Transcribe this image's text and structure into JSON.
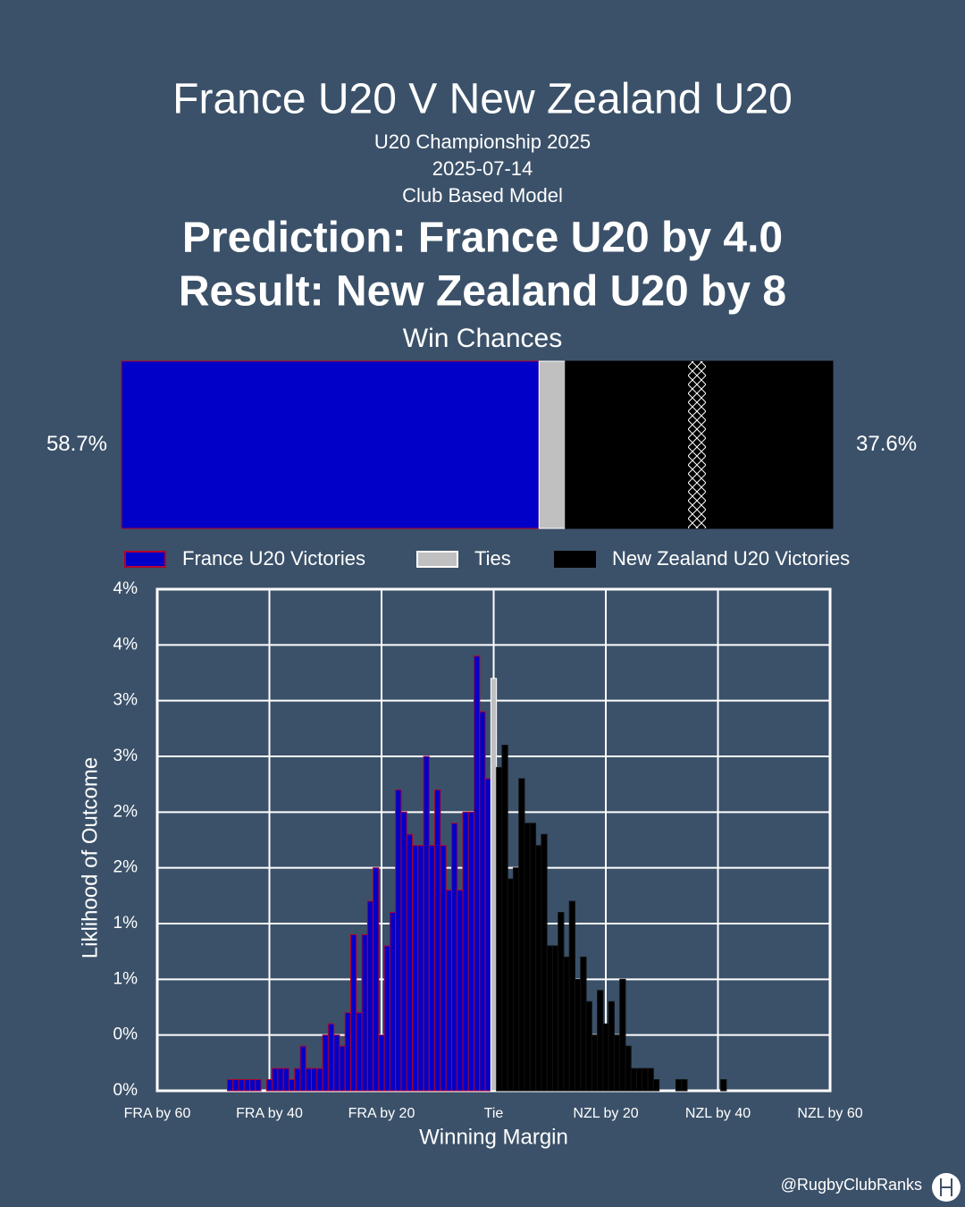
{
  "header": {
    "title": "France U20 V New Zealand U20",
    "competition": "U20 Championship 2025",
    "date": "2025-07-14",
    "model": "Club Based Model",
    "prediction": "Prediction: France U20 by 4.0",
    "result": "Result: New Zealand U20 by 8",
    "credit": "@RugbyClubRanks"
  },
  "chart_data": [
    {
      "type": "hbar_stack",
      "title": "Win Chances",
      "series": [
        {
          "name": "France U20 Victories",
          "color": "#0000c8",
          "edgecolor": "#b00030",
          "values": [
            58.7
          ],
          "value_labels": [
            "58.7%"
          ]
        },
        {
          "name": "Ties",
          "color": "#c0c0c0",
          "edgecolor": "#ffffff",
          "values": [
            3.7
          ]
        },
        {
          "name": "New Zealand U20 Victories",
          "color": "#000000",
          "edgecolor": "#000000",
          "values": [
            37.6
          ],
          "value_labels": [
            "37.6%"
          ]
        }
      ]
    },
    {
      "type": "histogram",
      "xlabel": "Winning Margin",
      "ylabel": "Liklihood of Outcome",
      "xlim": [
        -60,
        60
      ],
      "xticks": [
        {
          "value": -60,
          "label": "FRA by 60"
        },
        {
          "value": -40,
          "label": "FRA by 40"
        },
        {
          "value": -20,
          "label": "FRA by 20"
        },
        {
          "value": 0,
          "label": "Tie"
        },
        {
          "value": 20,
          "label": "NZL by 20"
        },
        {
          "value": 40,
          "label": "NZL by 40"
        },
        {
          "value": 60,
          "label": "NZL by 60"
        }
      ],
      "ylim": [
        0,
        4.5
      ],
      "yticks": [
        {
          "value": 0,
          "label": "0%"
        },
        {
          "value": 0.5,
          "label": "0%"
        },
        {
          "value": 1,
          "label": "1%"
        },
        {
          "value": 1.5,
          "label": "1%"
        },
        {
          "value": 2,
          "label": "2%"
        },
        {
          "value": 2.5,
          "label": "2%"
        },
        {
          "value": 3,
          "label": "3%"
        },
        {
          "value": 3.5,
          "label": "3%"
        },
        {
          "value": 4,
          "label": "4%"
        },
        {
          "value": 4.5,
          "label": "4%"
        }
      ],
      "grid": true,
      "series": [
        {
          "color": "#0000c8",
          "edgecolor": "#b00030",
          "bins": [
            -47.5,
            -46.5,
            -45.5,
            -44.5,
            -43.5,
            -42.5,
            -41.5,
            -40.5,
            -39.5,
            -38.5,
            -37.5,
            -36.5,
            -35.5,
            -34.5,
            -33.5,
            -32.5,
            -31.5,
            -30.5,
            -29.5,
            -28.5,
            -27.5,
            -26.5,
            -25.5,
            -24.5,
            -23.5,
            -22.5,
            -21.5,
            -20.5,
            -19.5,
            -18.5,
            -17.5,
            -16.5,
            -15.5,
            -14.5,
            -13.5,
            -12.5,
            -11.5,
            -10.5,
            -9.5,
            -8.5,
            -7.5,
            -6.5,
            -5.5,
            -4.5,
            -3.5,
            -2.5,
            -1.5,
            -0.5
          ],
          "values": [
            0.1,
            0.1,
            0.1,
            0.1,
            0.1,
            0.1,
            0,
            0.1,
            0.2,
            0.2,
            0.2,
            0.1,
            0.2,
            0.4,
            0.2,
            0.2,
            0.2,
            0.5,
            0.6,
            0.5,
            0.4,
            0.7,
            1.4,
            0.7,
            1.4,
            1.7,
            2.0,
            0.5,
            1.3,
            1.6,
            2.7,
            2.5,
            2.3,
            2.2,
            2.2,
            3.0,
            2.2,
            2.7,
            2.2,
            1.8,
            2.4,
            1.8,
            2.5,
            2.5,
            3.9,
            3.4,
            2.8
          ]
        },
        {
          "color": "#c0c0c0",
          "edgecolor": "#ffffff",
          "bins": [
            -0.5,
            0.5
          ],
          "values": [
            3.7
          ]
        },
        {
          "color": "#000000",
          "edgecolor": "#111111",
          "bins": [
            0.5,
            1.5,
            2.5,
            3.5,
            4.5,
            5.5,
            6.5,
            7.5,
            8.5,
            9.5,
            10.5,
            11.5,
            12.5,
            13.5,
            14.5,
            15.5,
            16.5,
            17.5,
            18.5,
            19.5,
            20.5,
            21.5,
            22.5,
            23.5,
            24.5,
            25.5,
            26.5,
            27.5,
            28.5,
            29.5,
            30.5,
            31.5,
            32.5,
            33.5,
            34.5,
            35.5,
            36.5,
            37.5,
            38.5,
            39.5,
            40.5,
            41.5
          ],
          "values": [
            2.9,
            3.1,
            1.9,
            2.0,
            2.8,
            2.4,
            2.4,
            2.2,
            2.3,
            1.3,
            1.3,
            1.6,
            1.2,
            1.7,
            1.0,
            1.2,
            0.8,
            0.5,
            0.9,
            0.6,
            0.8,
            0.5,
            1.0,
            0.4,
            0.2,
            0.2,
            0.2,
            0.2,
            0.1,
            0,
            0,
            0,
            0.1,
            0.1,
            0,
            0,
            0,
            0,
            0,
            0,
            0.1
          ]
        }
      ]
    }
  ]
}
